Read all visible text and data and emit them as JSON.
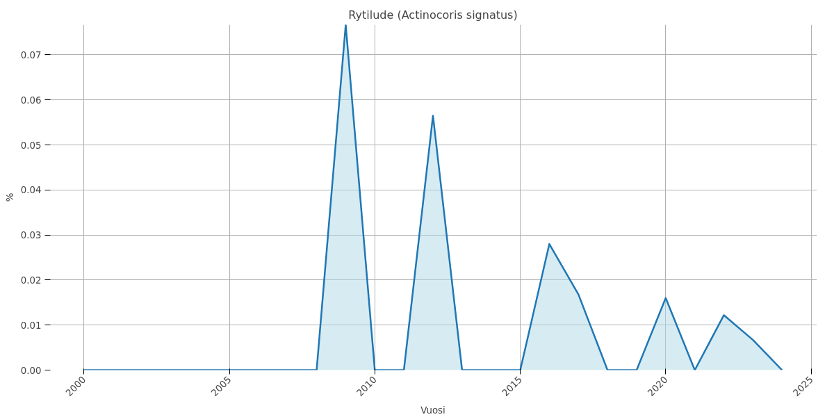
{
  "chart_data": {
    "type": "area",
    "title": "Rytilude (Actinocoris signatus)",
    "xlabel": "Vuosi",
    "ylabel": "%",
    "x": [
      2000,
      2001,
      2002,
      2003,
      2004,
      2005,
      2006,
      2007,
      2008,
      2009,
      2010,
      2011,
      2012,
      2013,
      2014,
      2015,
      2016,
      2017,
      2018,
      2019,
      2020,
      2021,
      2022,
      2023,
      2024
    ],
    "series": [
      {
        "color": "#1f77b4",
        "values": [
          0,
          0,
          0,
          0,
          0,
          0,
          0,
          0,
          0,
          0.0767,
          0,
          0,
          0.0565,
          0,
          0,
          0,
          0.028,
          0.0168,
          0,
          0,
          0.016,
          0,
          0.0122,
          0.0067,
          0
        ]
      }
    ],
    "xlim": [
      1998.8,
      2025.2
    ],
    "ylim": [
      0,
      0.0767
    ],
    "xticks": [
      2000,
      2005,
      2010,
      2015,
      2020,
      2025
    ],
    "yticks": [
      {
        "value": 0,
        "label": "0.00"
      },
      {
        "value": 0.01,
        "label": "0.01"
      },
      {
        "value": 0.02,
        "label": "0.02"
      },
      {
        "value": 0.03,
        "label": "0.03"
      },
      {
        "value": 0.04,
        "label": "0.04"
      },
      {
        "value": 0.05,
        "label": "0.05"
      },
      {
        "value": 0.06,
        "label": "0.06"
      },
      {
        "value": 0.07,
        "label": "0.07"
      }
    ],
    "grid": true
  }
}
